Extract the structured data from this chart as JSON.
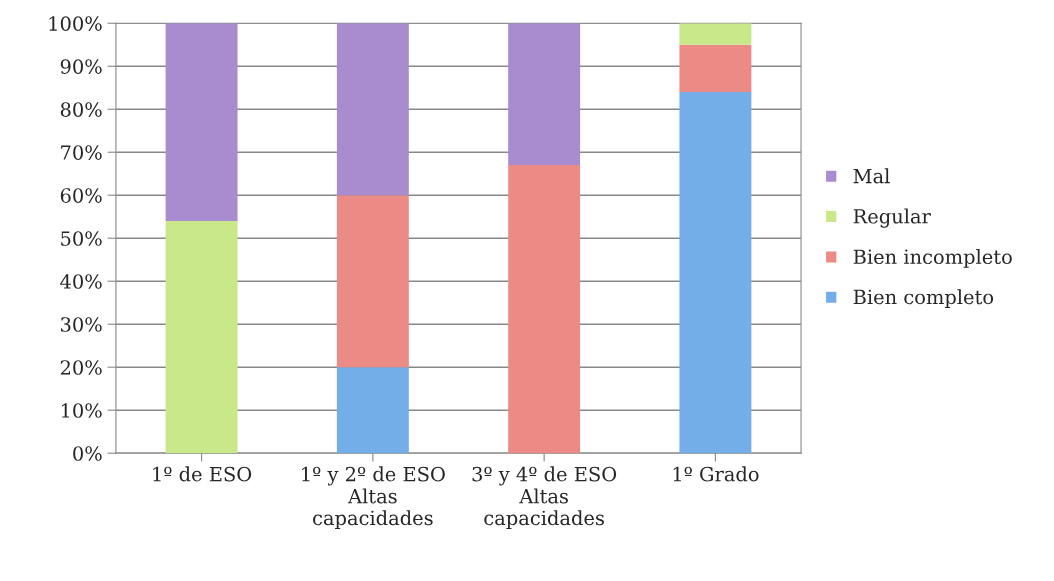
{
  "chart_data": {
    "type": "bar",
    "stacked": true,
    "categories": [
      "1º de ESO",
      "1º y 2º de ESO\nAltas\ncapacidades",
      "3º y 4º de ESO\nAltas\ncapacidades",
      "1º Grado"
    ],
    "series": [
      {
        "name": "Bien completo",
        "color": "#74aee8",
        "values": [
          null,
          20,
          null,
          84
        ]
      },
      {
        "name": "Bien incompleto",
        "color": "#ec8b85",
        "values": [
          null,
          40,
          67,
          11
        ]
      },
      {
        "name": "Regular",
        "color": "#c8e88a",
        "values": [
          54,
          null,
          null,
          5
        ]
      },
      {
        "name": "Mal",
        "color": "#a98bd0",
        "values": [
          46,
          40,
          33,
          null
        ]
      }
    ],
    "ylim": [
      0,
      100
    ],
    "yticks": [
      {
        "value": 0,
        "label": "0%"
      },
      {
        "value": 10,
        "label": "10%"
      },
      {
        "value": 20,
        "label": "20%"
      },
      {
        "value": 30,
        "label": "30%"
      },
      {
        "value": 40,
        "label": "40%"
      },
      {
        "value": 50,
        "label": "50%"
      },
      {
        "value": 60,
        "label": "60%"
      },
      {
        "value": 70,
        "label": "70%"
      },
      {
        "value": 80,
        "label": "80%"
      },
      {
        "value": 90,
        "label": "90%"
      },
      {
        "value": 100,
        "label": "100%"
      }
    ],
    "grid": "y",
    "legend": "right"
  }
}
